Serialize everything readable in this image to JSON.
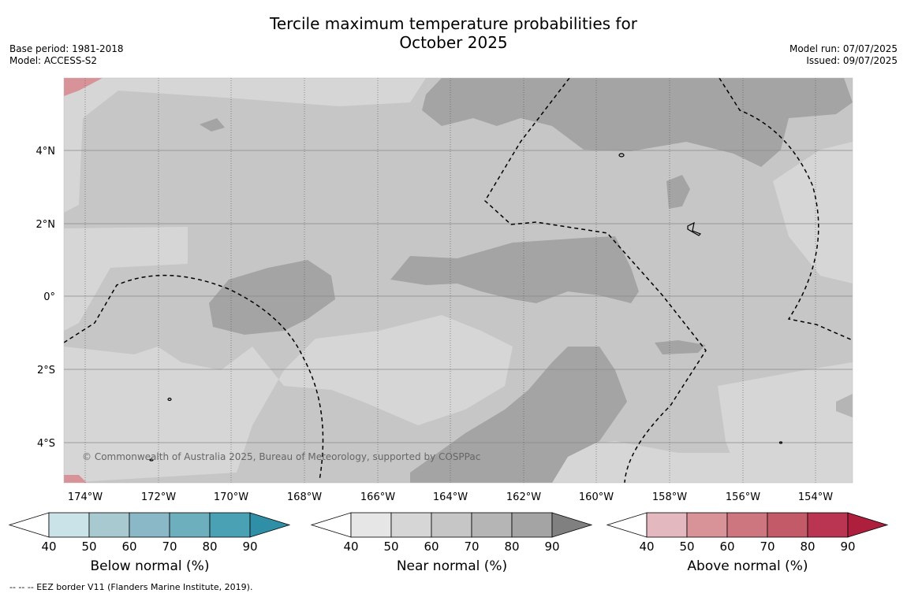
{
  "title_line1": "Tercile maximum temperature probabilities for",
  "title_line2": "October 2025",
  "meta_left": [
    "Base period: 1981-2018",
    "Model: ACCESS-S2"
  ],
  "meta_right": [
    "Model run: 07/07/2025",
    "Issued: 09/07/2025"
  ],
  "lon_labels": [
    "174°W",
    "172°W",
    "170°W",
    "168°W",
    "166°W",
    "164°W",
    "162°W",
    "160°W",
    "158°W",
    "156°W",
    "154°W"
  ],
  "lat_labels": [
    "4°N",
    "2°N",
    "0°",
    "2°S",
    "4°S"
  ],
  "copyright": "© Commonwealth of Australia 2025, Bureau of Meteorology, supported by COSPPac",
  "colorbars": [
    {
      "name": "below",
      "label": "Below normal (%)",
      "ticks": [
        "40",
        "50",
        "60",
        "70",
        "80",
        "90"
      ],
      "colors": [
        "#ffffff",
        "#cae3e9",
        "#a8c9cf",
        "#8bb8c6",
        "#6eafbd",
        "#4aa1b3",
        "#2e8fa6"
      ]
    },
    {
      "name": "near",
      "label": "Near normal (%)",
      "ticks": [
        "40",
        "50",
        "60",
        "70",
        "80",
        "90"
      ],
      "colors": [
        "#ffffff",
        "#e6e6e6",
        "#d6d6d6",
        "#c6c6c6",
        "#b5b5b5",
        "#a4a4a4",
        "#808080"
      ]
    },
    {
      "name": "above",
      "label": "Above normal (%)",
      "ticks": [
        "40",
        "50",
        "60",
        "70",
        "80",
        "90"
      ],
      "colors": [
        "#ffffff",
        "#e3b8bf",
        "#d89399",
        "#cd7680",
        "#c35a68",
        "#b93551",
        "#ad1f3c"
      ]
    }
  ],
  "footer": "--  --  -- EEZ border V11 (Flanders Marine Institute, 2019)."
}
